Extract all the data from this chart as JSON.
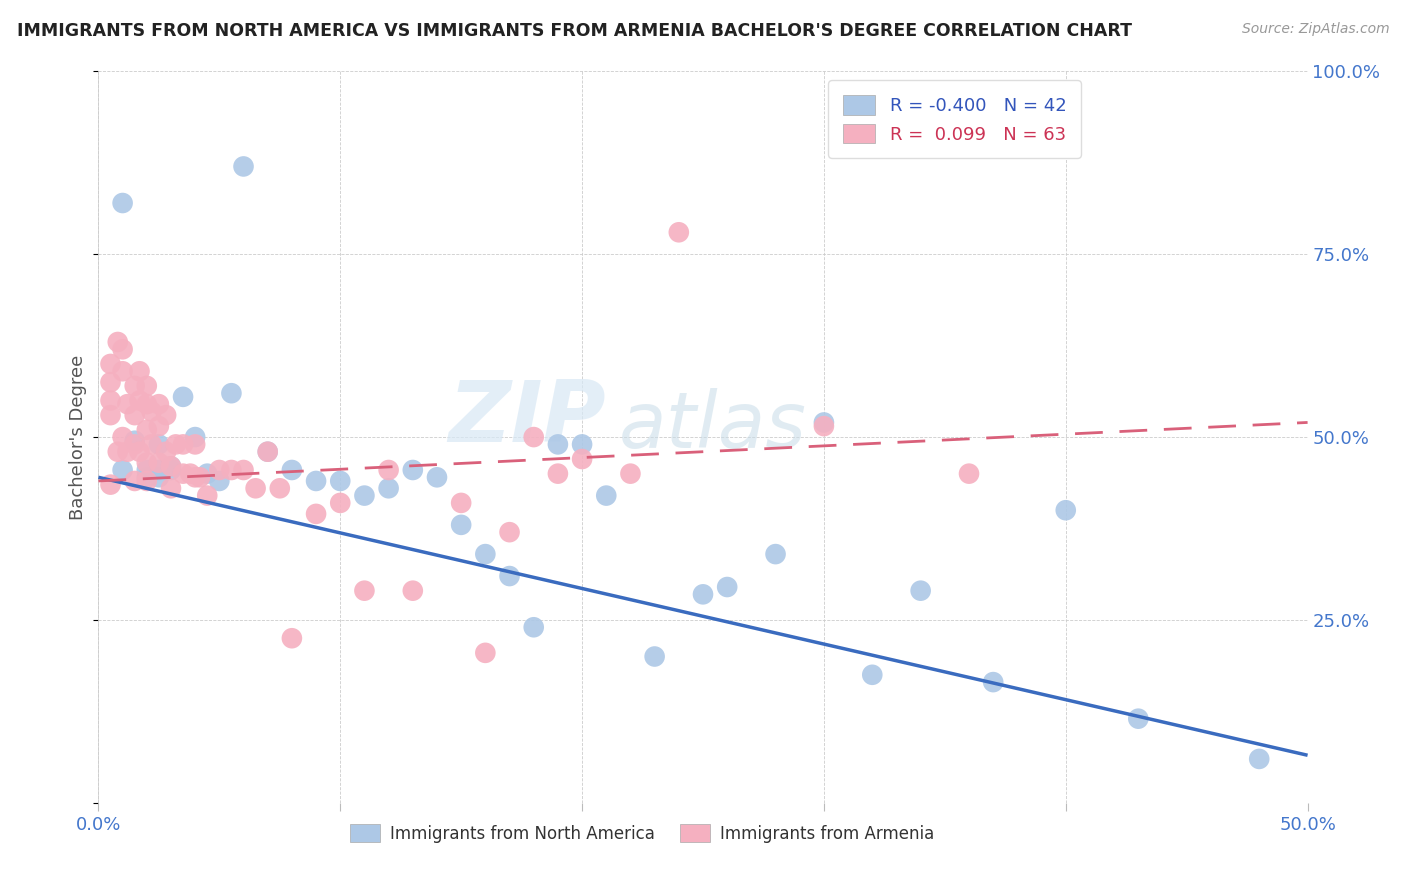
{
  "title": "IMMIGRANTS FROM NORTH AMERICA VS IMMIGRANTS FROM ARMENIA BACHELOR'S DEGREE CORRELATION CHART",
  "source": "Source: ZipAtlas.com",
  "ylabel": "Bachelor's Degree",
  "xlim": [
    0.0,
    0.5
  ],
  "ylim": [
    0.0,
    1.0
  ],
  "xtick_positions": [
    0.0,
    0.1,
    0.2,
    0.3,
    0.4,
    0.5
  ],
  "xticklabels": [
    "0.0%",
    "",
    "",
    "",
    "",
    "50.0%"
  ],
  "ytick_positions": [
    0.0,
    0.25,
    0.5,
    0.75,
    1.0
  ],
  "yticklabels_right": [
    "",
    "25.0%",
    "50.0%",
    "75.0%",
    "100.0%"
  ],
  "north_america_R": -0.4,
  "north_america_N": 42,
  "armenia_R": 0.099,
  "armenia_N": 63,
  "north_america_color": "#adc8e6",
  "armenia_color": "#f5b0c0",
  "north_america_line_color": "#3a6bbf",
  "armenia_line_color": "#d9607a",
  "watermark_zip": "ZIP",
  "watermark_atlas": "atlas",
  "na_x": [
    0.01,
    0.01,
    0.015,
    0.02,
    0.02,
    0.025,
    0.025,
    0.025,
    0.03,
    0.03,
    0.035,
    0.04,
    0.045,
    0.05,
    0.055,
    0.06,
    0.07,
    0.08,
    0.09,
    0.1,
    0.11,
    0.12,
    0.13,
    0.14,
    0.15,
    0.16,
    0.17,
    0.18,
    0.19,
    0.2,
    0.21,
    0.23,
    0.25,
    0.26,
    0.28,
    0.3,
    0.32,
    0.34,
    0.37,
    0.4,
    0.43,
    0.48
  ],
  "na_y": [
    0.82,
    0.455,
    0.495,
    0.445,
    0.455,
    0.445,
    0.49,
    0.455,
    0.455,
    0.46,
    0.555,
    0.5,
    0.45,
    0.44,
    0.56,
    0.87,
    0.48,
    0.455,
    0.44,
    0.44,
    0.42,
    0.43,
    0.455,
    0.445,
    0.38,
    0.34,
    0.31,
    0.24,
    0.49,
    0.49,
    0.42,
    0.2,
    0.285,
    0.295,
    0.34,
    0.52,
    0.175,
    0.29,
    0.165,
    0.4,
    0.115,
    0.06
  ],
  "arm_x": [
    0.005,
    0.005,
    0.005,
    0.005,
    0.005,
    0.008,
    0.008,
    0.01,
    0.01,
    0.01,
    0.012,
    0.012,
    0.015,
    0.015,
    0.015,
    0.015,
    0.017,
    0.017,
    0.017,
    0.02,
    0.02,
    0.02,
    0.02,
    0.02,
    0.022,
    0.022,
    0.025,
    0.025,
    0.025,
    0.028,
    0.028,
    0.03,
    0.03,
    0.032,
    0.035,
    0.035,
    0.038,
    0.04,
    0.04,
    0.042,
    0.045,
    0.05,
    0.055,
    0.06,
    0.065,
    0.07,
    0.075,
    0.08,
    0.09,
    0.1,
    0.11,
    0.12,
    0.13,
    0.15,
    0.16,
    0.17,
    0.18,
    0.19,
    0.2,
    0.22,
    0.24,
    0.3,
    0.36
  ],
  "arm_y": [
    0.6,
    0.575,
    0.55,
    0.53,
    0.435,
    0.63,
    0.48,
    0.62,
    0.59,
    0.5,
    0.545,
    0.48,
    0.57,
    0.53,
    0.49,
    0.44,
    0.59,
    0.55,
    0.48,
    0.57,
    0.545,
    0.51,
    0.465,
    0.44,
    0.535,
    0.49,
    0.545,
    0.515,
    0.465,
    0.53,
    0.48,
    0.46,
    0.43,
    0.49,
    0.49,
    0.45,
    0.45,
    0.49,
    0.445,
    0.445,
    0.42,
    0.455,
    0.455,
    0.455,
    0.43,
    0.48,
    0.43,
    0.225,
    0.395,
    0.41,
    0.29,
    0.455,
    0.29,
    0.41,
    0.205,
    0.37,
    0.5,
    0.45,
    0.47,
    0.45,
    0.78,
    0.515,
    0.45
  ],
  "na_line_x0": 0.0,
  "na_line_x1": 0.5,
  "na_line_y0": 0.445,
  "na_line_y1": 0.065,
  "arm_line_x0": 0.0,
  "arm_line_x1": 0.5,
  "arm_line_y0": 0.44,
  "arm_line_y1": 0.52
}
